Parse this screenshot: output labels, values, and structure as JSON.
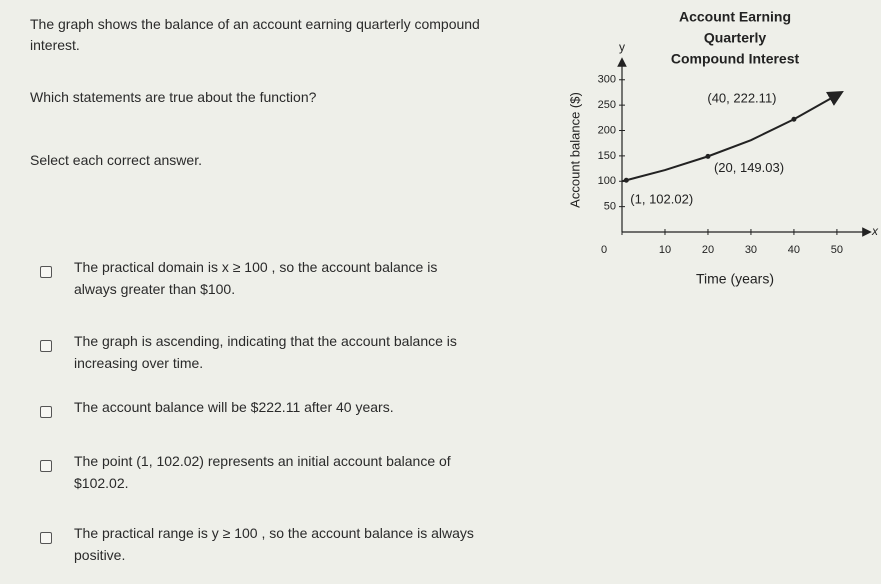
{
  "question": {
    "intro": "The graph shows the balance of an account earning quarterly compound interest.",
    "prompt": "Which statements are true about the function?",
    "instruction": "Select each correct answer.",
    "choices": [
      "The practical domain is x ≥ 100 , so the account balance is always greater than $100.",
      "The graph is ascending, indicating that the account balance is increasing over time.",
      "The account balance will be $222.11 after 40 years.",
      "The point (1, 102.02) represents an initial account balance of $102.02.",
      "The practical range is y ≥ 100 , so the account balance is always positive."
    ]
  },
  "chart_data": {
    "type": "line",
    "title": [
      "Account Earning",
      "Quarterly",
      "Compound Interest"
    ],
    "x_label": "Time (years)",
    "y_label": "Account balance ($)",
    "x_axis_letter": "x",
    "y_axis_letter": "y",
    "x": [
      0,
      1,
      10,
      20,
      30,
      40,
      50
    ],
    "values": [
      100,
      102.02,
      122,
      149.03,
      181,
      222.11,
      270
    ],
    "color": "#222222",
    "xlim": [
      0,
      57
    ],
    "ylim": [
      0,
      335
    ],
    "xticks": [
      0,
      10,
      20,
      30,
      40,
      50
    ],
    "yticks": [
      50,
      100,
      150,
      200,
      250,
      300
    ],
    "annotations": [
      {
        "text": "(40, 222.11)",
        "x": 40,
        "y": 222.11
      },
      {
        "text": "(20, 149.03)",
        "x": 20,
        "y": 149.03
      },
      {
        "text": "(1, 102.02)",
        "x": 1,
        "y": 102.02
      }
    ]
  }
}
